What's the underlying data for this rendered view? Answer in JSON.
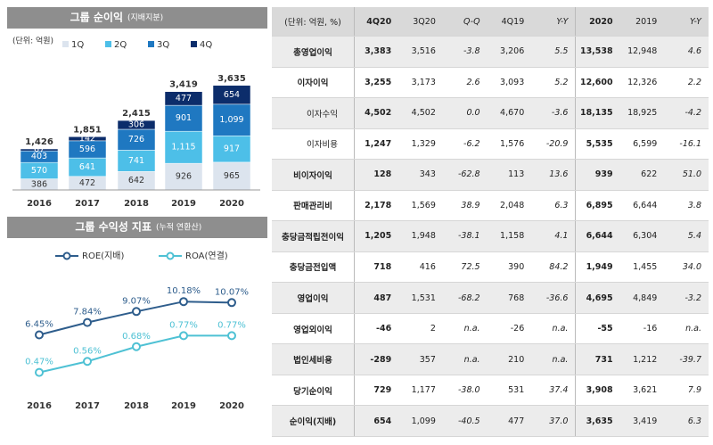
{
  "chart_data": [
    {
      "type": "bar",
      "stacked": true,
      "title": "그룹 순이익",
      "subtitle": "(지배지분)",
      "unit": "(단위: 억원)",
      "categories": [
        "2016",
        "2017",
        "2018",
        "2019",
        "2020"
      ],
      "series": [
        {
          "name": "1Q",
          "color": "#dce4ee",
          "values": [
            386,
            472,
            642,
            926,
            965
          ]
        },
        {
          "name": "2Q",
          "color": "#4dbfe8",
          "values": [
            570,
            641,
            741,
            1115,
            917
          ],
          "value_labels": [
            "570",
            "641",
            "741",
            "1,115",
            "917"
          ]
        },
        {
          "name": "3Q",
          "color": "#1f78c1",
          "values": [
            403,
            596,
            726,
            901,
            1099
          ],
          "value_labels": [
            "403",
            "596",
            "726",
            "901",
            "1,099"
          ]
        },
        {
          "name": "4Q",
          "color": "#0c2d6b",
          "values": [
            67,
            142,
            306,
            477,
            654
          ]
        }
      ],
      "totals": [
        1426,
        1851,
        2415,
        3419,
        3635
      ],
      "total_labels": [
        "1,426",
        "1,851",
        "2,415",
        "3,419",
        "3,635"
      ],
      "ylim": [
        0,
        4000
      ]
    },
    {
      "type": "line",
      "title": "그룹 수익성 지표",
      "subtitle": "(누적 연환산)",
      "categories": [
        "2016",
        "2017",
        "2018",
        "2019",
        "2020"
      ],
      "series": [
        {
          "name": "ROE(지배)",
          "color": "#2e5d8c",
          "values": [
            6.45,
            7.84,
            9.07,
            10.18,
            10.07
          ],
          "value_labels": [
            "6.45%",
            "7.84%",
            "9.07%",
            "10.18%",
            "10.07%"
          ]
        },
        {
          "name": "ROA(연결)",
          "color": "#4ec1d4",
          "axis": "y2",
          "values": [
            0.47,
            0.56,
            0.68,
            0.77,
            0.77
          ],
          "value_labels": [
            "0.47%",
            "0.56%",
            "0.68%",
            "0.77%",
            "0.77%"
          ]
        }
      ],
      "ylim": [
        1,
        12
      ],
      "y2lim": [
        0.38,
        1.18
      ]
    }
  ],
  "table": {
    "columns": [
      "(단위: 억원, %)",
      "4Q20",
      "3Q20",
      "Q-Q",
      "4Q19",
      "Y-Y",
      "2020",
      "2019",
      "Y-Y"
    ],
    "rows": [
      [
        "총영업이익",
        "3,383",
        "3,516",
        "-3.8",
        "3,206",
        "5.5",
        "13,538",
        "12,948",
        "4.6"
      ],
      [
        "이자이익",
        "3,255",
        "3,173",
        "2.6",
        "3,093",
        "5.2",
        "12,600",
        "12,326",
        "2.2"
      ],
      [
        "이자수익",
        "4,502",
        "4,502",
        "0.0",
        "4,670",
        "-3.6",
        "18,135",
        "18,925",
        "-4.2"
      ],
      [
        "이자비용",
        "1,247",
        "1,329",
        "-6.2",
        "1,576",
        "-20.9",
        "5,535",
        "6,599",
        "-16.1"
      ],
      [
        "비이자이익",
        "128",
        "343",
        "-62.8",
        "113",
        "13.6",
        "939",
        "622",
        "51.0"
      ],
      [
        "판매관리비",
        "2,178",
        "1,569",
        "38.9",
        "2,048",
        "6.3",
        "6,895",
        "6,644",
        "3.8"
      ],
      [
        "충당금적립전이익",
        "1,205",
        "1,948",
        "-38.1",
        "1,158",
        "4.1",
        "6,644",
        "6,304",
        "5.4"
      ],
      [
        "충당금전입액",
        "718",
        "416",
        "72.5",
        "390",
        "84.2",
        "1,949",
        "1,455",
        "34.0"
      ],
      [
        "영업이익",
        "487",
        "1,531",
        "-68.2",
        "768",
        "-36.6",
        "4,695",
        "4,849",
        "-3.2"
      ],
      [
        "영업외이익",
        "-46",
        "2",
        "n.a.",
        "-26",
        "n.a.",
        "-55",
        "-16",
        "n.a."
      ],
      [
        "법인세비용",
        "-289",
        "357",
        "n.a.",
        "210",
        "n.a.",
        "731",
        "1,212",
        "-39.7"
      ],
      [
        "당기순이익",
        "729",
        "1,177",
        "-38.0",
        "531",
        "37.4",
        "3,908",
        "3,621",
        "7.9"
      ],
      [
        "순이익(지배)",
        "654",
        "1,099",
        "-40.5",
        "477",
        "37.0",
        "3,635",
        "3,419",
        "6.3"
      ]
    ]
  }
}
